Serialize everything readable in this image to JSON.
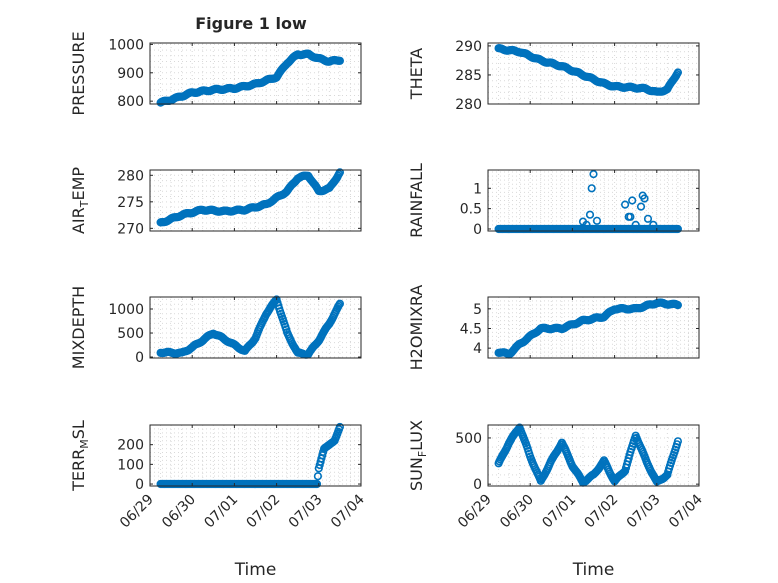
{
  "figure": {
    "title": "Figure 1 low",
    "marker_color": "#0072bd"
  },
  "chart_data": [
    {
      "id": "pressure",
      "type": "scatter",
      "title": "Figure 1 low",
      "xlabel": "",
      "ylabel": "PRESSURE",
      "xlim": [
        "06/29 00:00",
        "07/04 00:00"
      ],
      "ylim": [
        790,
        1005
      ],
      "yticks": [
        800,
        900,
        1000
      ],
      "anchors": [
        [
          "06/29 06:00",
          795
        ],
        [
          "06/29 12:00",
          805
        ],
        [
          "06/30 00:00",
          830
        ],
        [
          "06/30 12:00",
          840
        ],
        [
          "07/01 00:00",
          845
        ],
        [
          "07/01 12:00",
          860
        ],
        [
          "07/02 00:00",
          885
        ],
        [
          "07/02 06:00",
          935
        ],
        [
          "07/02 12:00",
          965
        ],
        [
          "07/02 18:00",
          965
        ],
        [
          "07/03 00:00",
          950
        ],
        [
          "07/03 06:00",
          940
        ],
        [
          "07/03 12:00",
          945
        ]
      ],
      "points_per_day": 48
    },
    {
      "id": "theta",
      "type": "scatter",
      "title": "",
      "xlabel": "",
      "ylabel": "THETA",
      "xlim": [
        "06/29 00:00",
        "07/04 00:00"
      ],
      "ylim": [
        280,
        290.5
      ],
      "yticks": [
        280,
        285,
        290
      ],
      "anchors": [
        [
          "06/29 06:00",
          289.5
        ],
        [
          "06/29 18:00",
          289.0
        ],
        [
          "06/30 06:00",
          287.5
        ],
        [
          "06/30 18:00",
          286.5
        ],
        [
          "07/01 06:00",
          285.0
        ],
        [
          "07/01 18:00",
          283.5
        ],
        [
          "07/02 00:00",
          283.0
        ],
        [
          "07/02 12:00",
          282.8
        ],
        [
          "07/02 18:00",
          282.6
        ],
        [
          "07/03 00:00",
          282.0
        ],
        [
          "07/03 06:00",
          282.5
        ],
        [
          "07/03 12:00",
          285.5
        ]
      ],
      "points_per_day": 48
    },
    {
      "id": "air_temp",
      "type": "scatter",
      "title": "",
      "xlabel": "",
      "ylabel": "AIR",
      "ylabel_sub": "T",
      "ylabel_suffix": "EMP",
      "xlim": [
        "06/29 00:00",
        "07/04 00:00"
      ],
      "ylim": [
        269.5,
        281
      ],
      "yticks": [
        270,
        275,
        280
      ],
      "anchors": [
        [
          "06/29 06:00",
          271.0
        ],
        [
          "06/29 18:00",
          272.5
        ],
        [
          "06/30 06:00",
          273.5
        ],
        [
          "06/30 18:00",
          273.2
        ],
        [
          "07/01 06:00",
          273.5
        ],
        [
          "07/01 18:00",
          274.5
        ],
        [
          "07/02 06:00",
          277.0
        ],
        [
          "07/02 12:00",
          279.5
        ],
        [
          "07/02 18:00",
          280.0
        ],
        [
          "07/03 00:00",
          277.0
        ],
        [
          "07/03 06:00",
          277.5
        ],
        [
          "07/03 12:00",
          280.5
        ]
      ],
      "points_per_day": 48
    },
    {
      "id": "rainfall",
      "type": "scatter",
      "title": "",
      "xlabel": "",
      "ylabel": "RAINFALL",
      "xlim": [
        "06/29 00:00",
        "07/04 00:00"
      ],
      "ylim": [
        -0.05,
        1.45
      ],
      "yticks": [
        0,
        0.5,
        1
      ],
      "ytick_labels": [
        "0",
        "0.5",
        "1"
      ],
      "anchors": [
        [
          "06/29 06:00",
          0
        ],
        [
          "07/03 12:00",
          0
        ]
      ],
      "points_per_day": 48,
      "spikes": [
        [
          "07/01 06:00",
          0.18
        ],
        [
          "07/01 08:00",
          0.1
        ],
        [
          "07/01 10:00",
          0.35
        ],
        [
          "07/01 11:00",
          1.0
        ],
        [
          "07/01 12:00",
          1.35
        ],
        [
          "07/01 14:00",
          0.2
        ],
        [
          "07/02 06:00",
          0.6
        ],
        [
          "07/02 08:00",
          0.3
        ],
        [
          "07/02 09:00",
          0.3
        ],
        [
          "07/02 10:00",
          0.7
        ],
        [
          "07/02 12:00",
          0.1
        ],
        [
          "07/02 15:00",
          0.55
        ],
        [
          "07/02 16:00",
          0.82
        ],
        [
          "07/02 17:00",
          0.75
        ],
        [
          "07/02 19:00",
          0.25
        ],
        [
          "07/02 22:00",
          0.1
        ]
      ]
    },
    {
      "id": "mixdepth",
      "type": "scatter",
      "title": "",
      "xlabel": "",
      "ylabel": "MIXDEPTH",
      "xlim": [
        "06/29 00:00",
        "07/04 00:00"
      ],
      "ylim": [
        -20,
        1250
      ],
      "yticks": [
        0,
        500,
        1000
      ],
      "anchors": [
        [
          "06/29 06:00",
          100
        ],
        [
          "06/29 18:00",
          80
        ],
        [
          "06/30 00:00",
          200
        ],
        [
          "06/30 06:00",
          350
        ],
        [
          "06/30 12:00",
          500
        ],
        [
          "06/30 18:00",
          380
        ],
        [
          "07/01 00:00",
          250
        ],
        [
          "07/01 06:00",
          120
        ],
        [
          "07/01 12:00",
          400
        ],
        [
          "07/01 18:00",
          900
        ],
        [
          "07/02 00:00",
          1200
        ],
        [
          "07/02 06:00",
          500
        ],
        [
          "07/02 12:00",
          80
        ],
        [
          "07/02 18:00",
          60
        ],
        [
          "07/03 00:00",
          350
        ],
        [
          "07/03 06:00",
          700
        ],
        [
          "07/03 12:00",
          1100
        ]
      ],
      "points_per_day": 48
    },
    {
      "id": "h2omixra",
      "type": "scatter",
      "title": "",
      "xlabel": "",
      "ylabel": "H2OMIXRA",
      "xlim": [
        "06/29 00:00",
        "07/04 00:00"
      ],
      "ylim": [
        3.75,
        5.3
      ],
      "yticks": [
        4,
        4.5,
        5
      ],
      "ytick_labels": [
        "4",
        "4.5",
        "5"
      ],
      "anchors": [
        [
          "06/29 06:00",
          3.9
        ],
        [
          "06/29 12:00",
          3.85
        ],
        [
          "06/29 18:00",
          4.1
        ],
        [
          "06/30 06:00",
          4.5
        ],
        [
          "06/30 18:00",
          4.5
        ],
        [
          "07/01 06:00",
          4.7
        ],
        [
          "07/01 18:00",
          4.8
        ],
        [
          "07/02 00:00",
          5.0
        ],
        [
          "07/02 12:00",
          5.0
        ],
        [
          "07/03 00:00",
          5.15
        ],
        [
          "07/03 12:00",
          5.1
        ]
      ],
      "points_per_day": 48
    },
    {
      "id": "terr_msl",
      "type": "scatter",
      "title": "",
      "xlabel": "Time",
      "ylabel": "TERR",
      "ylabel_sub": "M",
      "ylabel_suffix": "SL",
      "xlim": [
        "06/29 00:00",
        "07/04 00:00"
      ],
      "ylim": [
        -10,
        300
      ],
      "yticks": [
        0,
        100,
        200
      ],
      "anchors": [
        [
          "06/29 06:00",
          0
        ],
        [
          "07/02 23:00",
          0
        ],
        [
          "07/03 00:00",
          80
        ],
        [
          "07/03 03:00",
          180
        ],
        [
          "07/03 06:00",
          200
        ],
        [
          "07/03 09:00",
          220
        ],
        [
          "07/03 12:00",
          290
        ]
      ],
      "points_per_day": 48,
      "xticks": [
        "06/29",
        "06/30",
        "07/01",
        "07/02",
        "07/03",
        "07/04"
      ]
    },
    {
      "id": "sun_flux",
      "type": "scatter",
      "title": "",
      "xlabel": "Time",
      "ylabel": "SUN",
      "ylabel_sub": "F",
      "ylabel_suffix": "LUX",
      "xlim": [
        "06/29 00:00",
        "07/04 00:00"
      ],
      "ylim": [
        -20,
        640
      ],
      "yticks": [
        0,
        500
      ],
      "anchors": [
        [
          "06/29 06:00",
          220
        ],
        [
          "06/29 12:00",
          450
        ],
        [
          "06/29 18:00",
          620
        ],
        [
          "06/30 00:00",
          300
        ],
        [
          "06/30 06:00",
          30
        ],
        [
          "06/30 12:00",
          250
        ],
        [
          "06/30 18:00",
          450
        ],
        [
          "07/01 00:00",
          200
        ],
        [
          "07/01 06:00",
          20
        ],
        [
          "07/01 12:00",
          100
        ],
        [
          "07/01 18:00",
          250
        ],
        [
          "07/02 00:00",
          30
        ],
        [
          "07/02 06:00",
          150
        ],
        [
          "07/02 12:00",
          530
        ],
        [
          "07/02 18:00",
          250
        ],
        [
          "07/03 00:00",
          20
        ],
        [
          "07/03 06:00",
          100
        ],
        [
          "07/03 12:00",
          470
        ]
      ],
      "points_per_day": 48,
      "xticks": [
        "06/29",
        "06/30",
        "07/01",
        "07/02",
        "07/03",
        "07/04"
      ]
    }
  ]
}
